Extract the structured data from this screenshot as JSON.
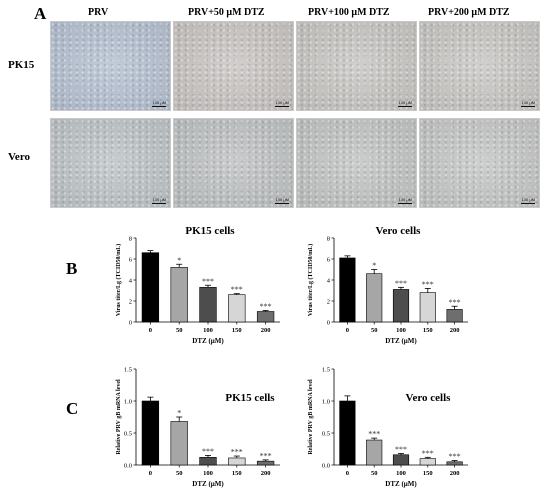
{
  "panel_a": {
    "letter": "A",
    "conditions": [
      "PRV",
      "PRV+50 μM DTZ",
      "PRV+100 μM DTZ",
      "PRV+200 μM DTZ"
    ],
    "cell_lines": [
      "PK15",
      "Vero"
    ],
    "scale_label": "100 μM",
    "image_colors": [
      [
        "#b4bfd0",
        "#c7c3c1",
        "#c6c4c1",
        "#c7c5c2"
      ],
      [
        "#bcc2c5",
        "#bdc0c1",
        "#c0c2c2",
        "#c3c4c4"
      ]
    ]
  },
  "panel_b_letter": "B",
  "panel_c_letter": "C",
  "bar_colors": [
    "#000000",
    "#a6a6a6",
    "#4d4d4d",
    "#d6d6d6",
    "#6e6e6e"
  ],
  "chart_data": [
    {
      "type": "bar",
      "panel": "B",
      "title": "PK15 cells",
      "xlabel": "DTZ (μM)",
      "ylabel": "Virus titer/Lg (TCID50/mL)",
      "categories": [
        "0",
        "50",
        "100",
        "150",
        "200"
      ],
      "values": [
        6.6,
        5.2,
        3.3,
        2.6,
        1.0
      ],
      "errors": [
        0.2,
        0.3,
        0.2,
        0.1,
        0.1
      ],
      "significance": [
        "",
        "*",
        "***",
        "***",
        "***"
      ],
      "ylim": [
        0,
        8
      ],
      "yticks": [
        "0",
        "2",
        "4",
        "6",
        "8"
      ]
    },
    {
      "type": "bar",
      "panel": "B",
      "title": "Vero cells",
      "xlabel": "DTZ (μM)",
      "ylabel": "Virus titer/Lg (TCID50/mL)",
      "categories": [
        "0",
        "50",
        "100",
        "150",
        "200"
      ],
      "values": [
        6.1,
        4.6,
        3.1,
        2.8,
        1.2
      ],
      "errors": [
        0.2,
        0.4,
        0.2,
        0.4,
        0.3
      ],
      "significance": [
        "",
        "*",
        "***",
        "***",
        "***"
      ],
      "ylim": [
        0,
        8
      ],
      "yticks": [
        "0",
        "2",
        "4",
        "6",
        "8"
      ]
    },
    {
      "type": "bar",
      "panel": "C",
      "title": "PK15 cells",
      "xlabel": "DTZ (μM)",
      "ylabel": "Relative PRV gB mRNA level",
      "categories": [
        "0",
        "50",
        "100",
        "150",
        "200"
      ],
      "values": [
        1.0,
        0.68,
        0.12,
        0.11,
        0.06
      ],
      "errors": [
        0.06,
        0.07,
        0.03,
        0.03,
        0.02
      ],
      "significance": [
        "",
        "*",
        "***",
        "***",
        "***"
      ],
      "ylim": [
        0,
        1.5
      ],
      "yticks": [
        "0.0",
        "0.5",
        "1.0",
        "1.5"
      ]
    },
    {
      "type": "bar",
      "panel": "C",
      "title": "Vero cells",
      "xlabel": "DTZ (μM)",
      "ylabel": "Relative PRV gB mRNA level",
      "categories": [
        "0",
        "50",
        "100",
        "150",
        "200"
      ],
      "values": [
        1.0,
        0.39,
        0.16,
        0.1,
        0.05
      ],
      "errors": [
        0.08,
        0.03,
        0.02,
        0.02,
        0.02
      ],
      "significance": [
        "",
        "***",
        "***",
        "***",
        "***"
      ],
      "ylim": [
        0,
        1.5
      ],
      "yticks": [
        "0.0",
        "0.5",
        "1.0",
        "1.5"
      ]
    }
  ]
}
